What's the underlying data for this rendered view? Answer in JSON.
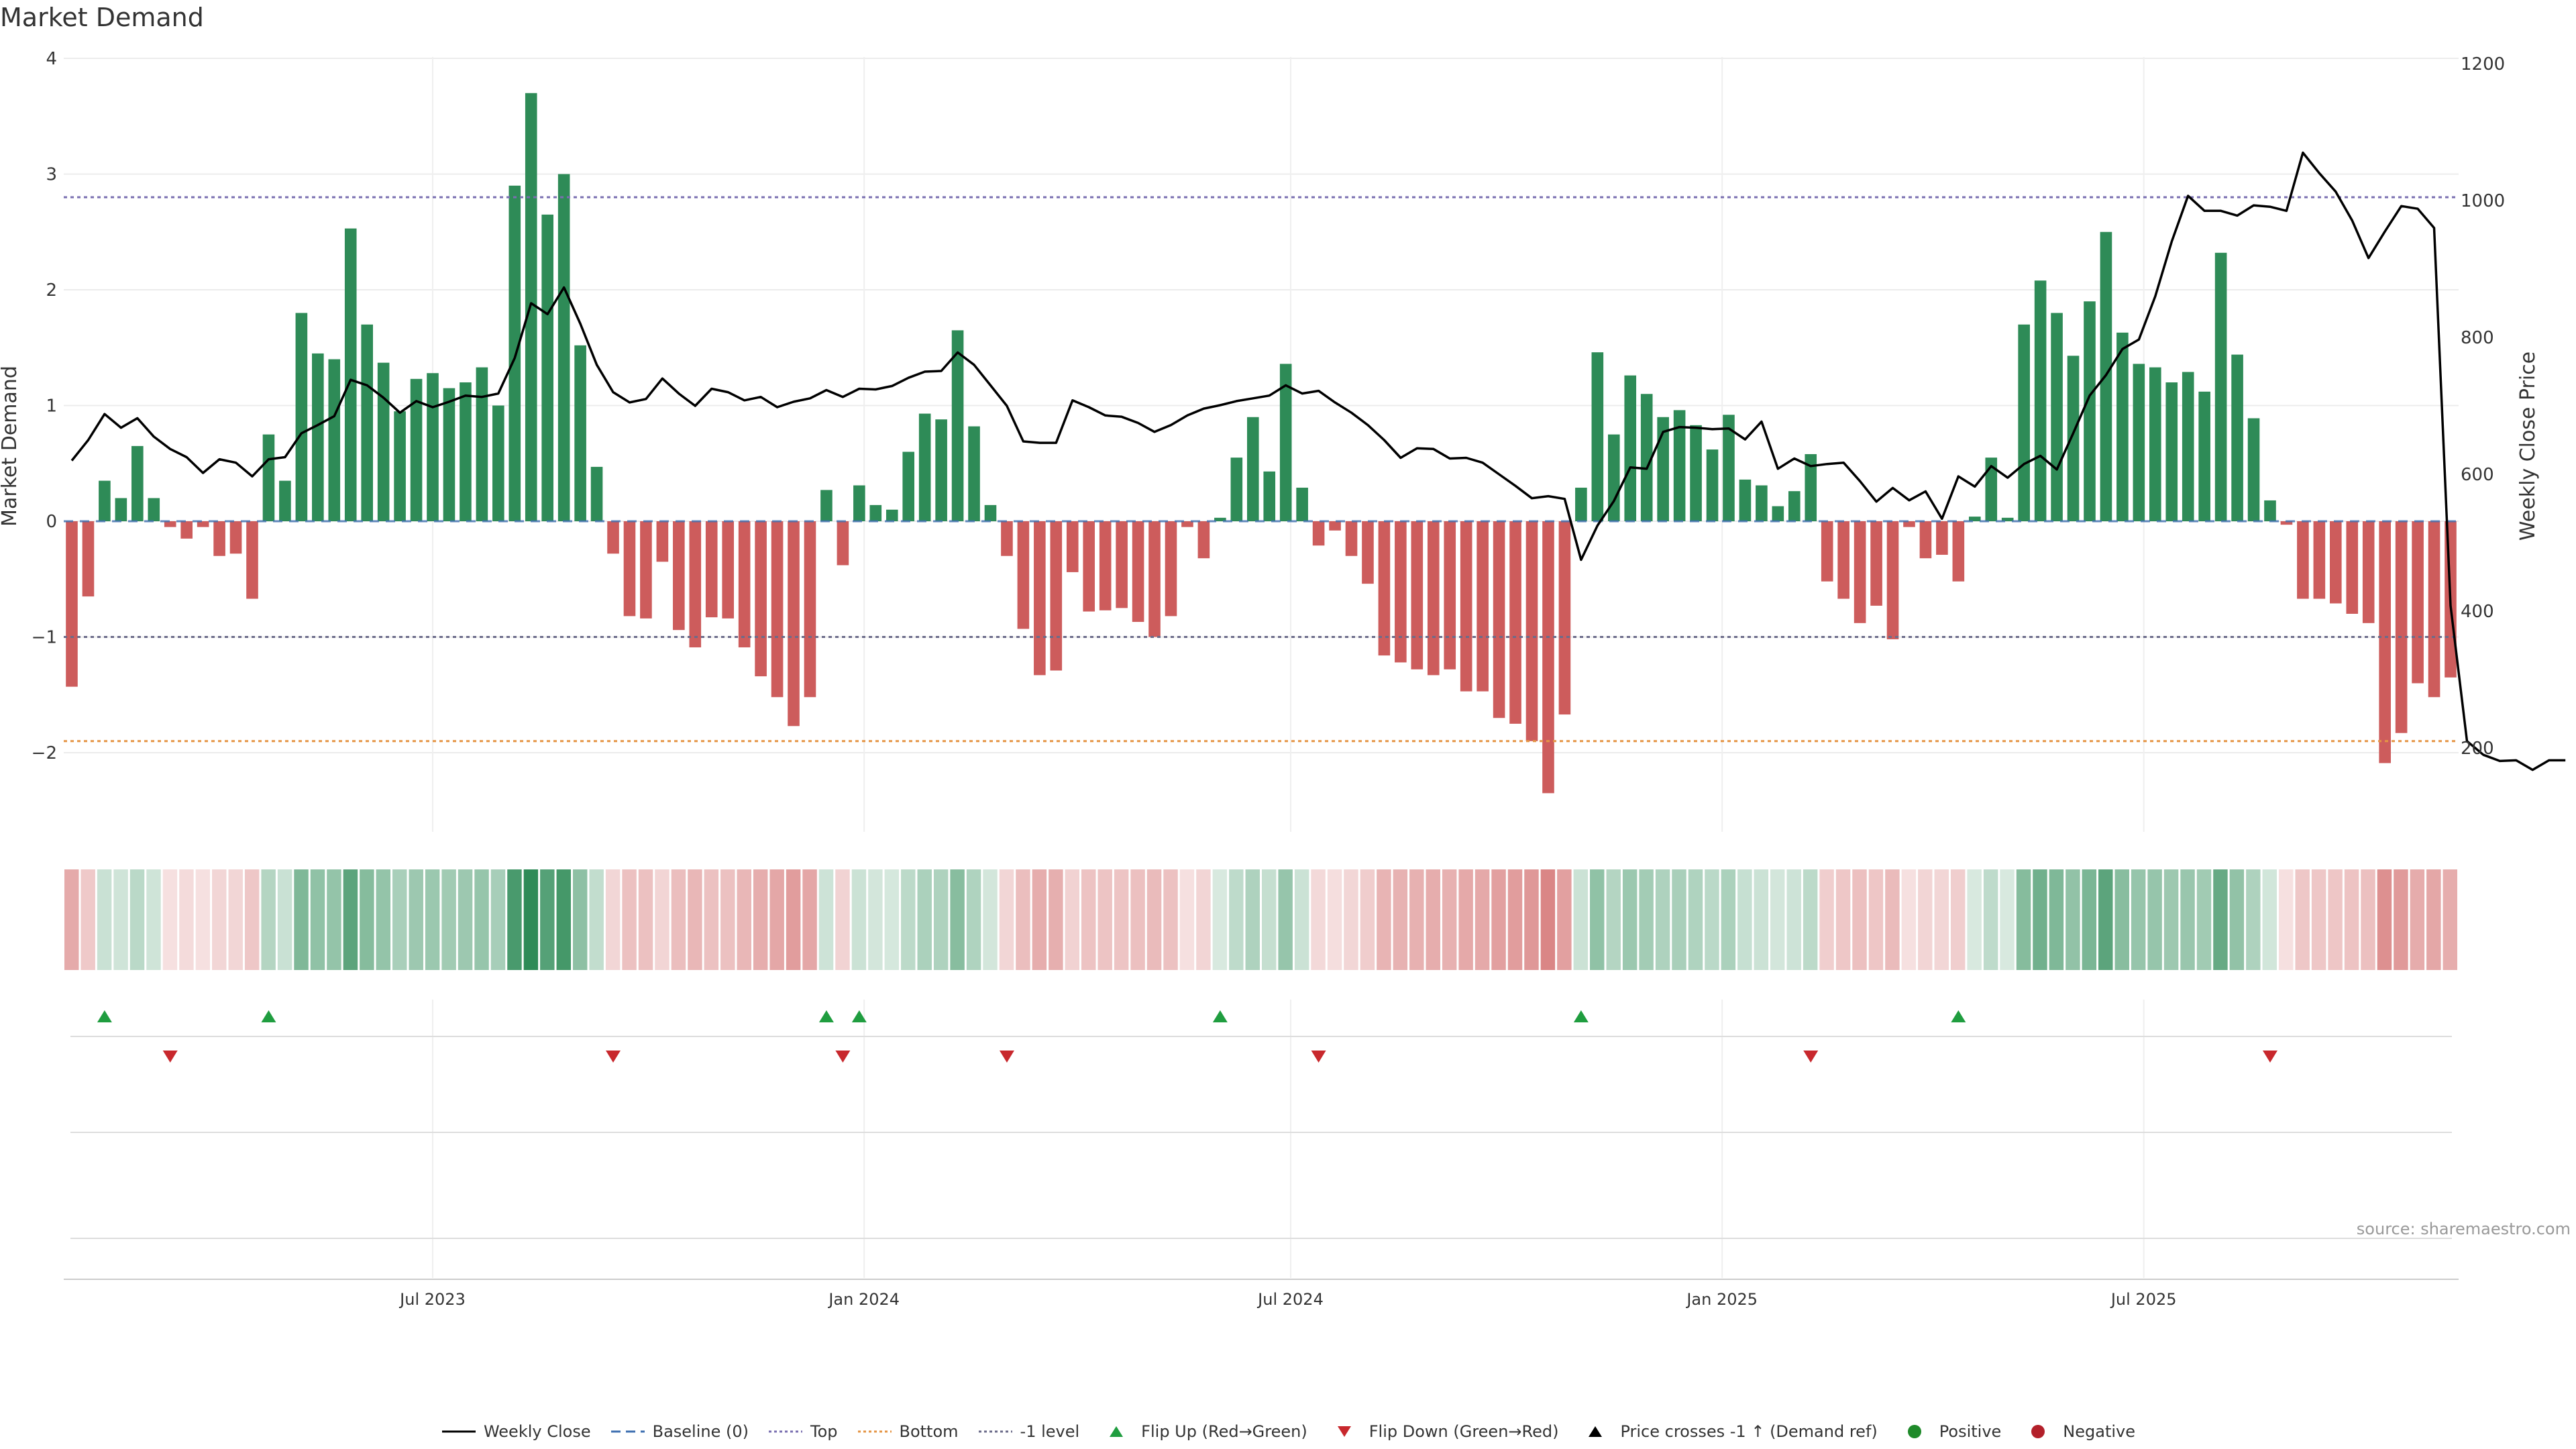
{
  "title": "Market Demand",
  "source": "source: sharemaestro.com",
  "colors": {
    "positive": "#2e8b57",
    "negative": "#cd5c5c",
    "price": "#000000",
    "top": "#7a6fb0",
    "bottom": "#e59545",
    "minus1": "#6b6b8a",
    "baseline": "#3e6fb0",
    "flip_up": "#1f9d3f",
    "flip_down": "#c8282d"
  },
  "chart_data": {
    "type": "bar",
    "title": "Market Demand",
    "ylabel": "Market Demand",
    "y2label": "Weekly Close Price",
    "ylim": [
      -2.7,
      4
    ],
    "y2lim": [
      88.5,
      1205
    ],
    "yticks": [
      4,
      3,
      2,
      1,
      0,
      -1,
      -2
    ],
    "ytick_labels": [
      "4",
      "3",
      "2",
      "1",
      "0",
      "−1",
      "−2"
    ],
    "y2ticks": [
      1200,
      1000,
      800,
      600,
      400,
      200
    ],
    "y2tick_labels": [
      "1200",
      "1000",
      "800",
      "600",
      "400",
      "200"
    ],
    "x_start": "2023-01-30",
    "x_step_days": 7,
    "x_ticks": [
      {
        "label": "Jul 2023",
        "week": 22
      },
      {
        "label": "Jan 2024",
        "week": 48.3
      },
      {
        "label": "Jul 2024",
        "week": 74.3
      },
      {
        "label": "Jan 2025",
        "week": 100.6
      },
      {
        "label": "Jul 2025",
        "week": 126.3
      }
    ],
    "levels": {
      "top": 2.8,
      "bottom": -1.9,
      "minus1": -1,
      "baseline": 0
    },
    "demand": [
      -1.43,
      -0.65,
      0.35,
      0.2,
      0.65,
      0.2,
      -0.05,
      -0.15,
      -0.05,
      -0.3,
      -0.28,
      -0.67,
      0.75,
      0.35,
      1.8,
      1.45,
      1.4,
      2.53,
      1.7,
      1.37,
      0.95,
      1.23,
      1.28,
      1.15,
      1.2,
      1.33,
      1.0,
      2.9,
      3.7,
      2.65,
      3.0,
      1.52,
      0.47,
      -0.28,
      -0.82,
      -0.84,
      -0.35,
      -0.94,
      -1.09,
      -0.83,
      -0.84,
      -1.09,
      -1.34,
      -1.52,
      -1.77,
      -1.52,
      0.27,
      -0.38,
      0.31,
      0.14,
      0.1,
      0.6,
      0.93,
      0.88,
      1.65,
      0.82,
      0.14,
      -0.3,
      -0.93,
      -1.33,
      -1.29,
      -0.44,
      -0.78,
      -0.77,
      -0.75,
      -0.87,
      -1.0,
      -0.82,
      -0.05,
      -0.32,
      0.03,
      0.55,
      0.9,
      0.43,
      1.36,
      0.29,
      -0.21,
      -0.08,
      -0.3,
      -0.54,
      -1.16,
      -1.22,
      -1.28,
      -1.33,
      -1.28,
      -1.47,
      -1.47,
      -1.7,
      -1.75,
      -1.9,
      -2.35,
      -1.67,
      0.29,
      1.46,
      0.75,
      1.26,
      1.1,
      0.9,
      0.96,
      0.83,
      0.62,
      0.92,
      0.36,
      0.31,
      0.13,
      0.26,
      0.58,
      -0.52,
      -0.67,
      -0.88,
      -0.73,
      -1.02,
      -0.05,
      -0.32,
      -0.29,
      -0.52,
      0.04,
      0.55,
      0.03,
      1.7,
      2.08,
      1.8,
      1.43,
      1.9,
      2.5,
      1.63,
      1.36,
      1.33,
      1.2,
      1.29,
      1.12,
      2.32,
      1.44,
      0.89,
      0.18,
      -0.03,
      -0.67,
      -0.67,
      -0.71,
      -0.8,
      -0.88,
      -2.09,
      -1.83,
      -1.4,
      -1.52,
      -1.35
    ],
    "price": [
      620,
      650,
      688,
      668,
      682,
      655,
      637,
      625,
      602,
      622,
      617,
      597,
      622,
      625,
      660,
      672,
      685,
      738,
      730,
      712,
      690,
      707,
      698,
      706,
      715,
      713,
      718,
      770,
      850,
      834,
      873,
      820,
      760,
      720,
      705,
      710,
      740,
      718,
      700,
      725,
      720,
      708,
      713,
      698,
      706,
      711,
      723,
      713,
      725,
      724,
      729,
      741,
      750,
      751,
      778,
      760,
      730,
      700,
      648,
      646,
      646,
      708,
      698,
      686,
      684,
      675,
      662,
      672,
      686,
      696,
      701,
      707,
      711,
      715,
      730,
      718,
      722,
      705,
      690,
      672,
      650,
      624,
      638,
      637,
      623,
      624,
      617,
      600,
      583,
      565,
      568,
      564,
      475,
      525,
      561,
      610,
      608,
      662,
      669,
      668,
      666,
      667,
      651,
      677,
      608,
      623,
      612,
      615,
      617,
      590,
      560,
      580,
      562,
      575,
      535,
      597,
      582,
      612,
      595,
      615,
      627,
      607,
      660,
      715,
      745,
      783,
      797,
      860,
      940,
      1007,
      985,
      985,
      978,
      993,
      991,
      985,
      1070,
      1040,
      1013,
      971,
      916,
      955,
      992,
      988,
      960,
      408,
      210,
      190,
      181,
      182,
      168,
      182,
      182
    ]
  },
  "heatmap": {
    "label": "Demand intensity strip"
  },
  "flip_up_weeks": [
    2,
    12,
    46,
    48,
    70,
    92,
    115
  ],
  "flip_down_weeks": [
    6,
    33,
    47,
    57,
    76,
    106,
    134
  ],
  "legend": [
    {
      "key": "weekly_close",
      "label": "Weekly Close"
    },
    {
      "key": "baseline",
      "label": "Baseline (0)"
    },
    {
      "key": "top",
      "label": "Top"
    },
    {
      "key": "bottom",
      "label": "Bottom"
    },
    {
      "key": "minus1",
      "label": "-1 level"
    },
    {
      "key": "flip_up",
      "label": "Flip Up (Red→Green)"
    },
    {
      "key": "flip_down",
      "label": "Flip Down (Green→Red)"
    },
    {
      "key": "price_cross",
      "label": "Price crosses -1 ↑ (Demand ref)"
    },
    {
      "key": "positive",
      "label": "Positive"
    },
    {
      "key": "negative",
      "label": "Negative"
    }
  ]
}
